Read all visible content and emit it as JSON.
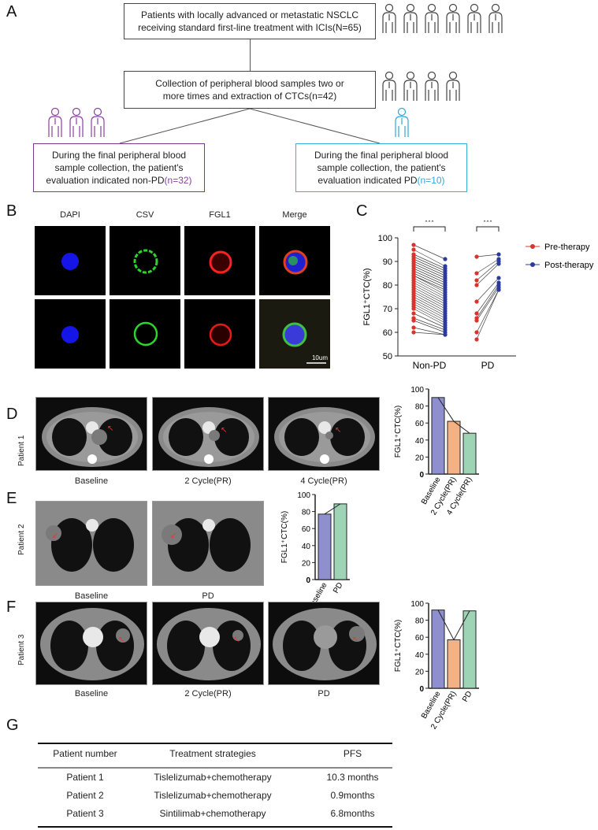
{
  "panels": {
    "A": "A",
    "B": "B",
    "C": "C",
    "D": "D",
    "E": "E",
    "F": "F",
    "G": "G"
  },
  "flow": {
    "box1_line1": "Patients with locally advanced or metastatic NSCLC",
    "box1_line2": "receiving standard first-line treatment with ICIs(N=65)",
    "box2_line1": "Collection of peripheral blood samples two or",
    "box2_line2": "more times and extraction of CTCs(n=42)",
    "box3_line1": "During the final peripheral blood",
    "box3_line2": "sample collection, the patient's",
    "box3_line3": "evaluation indicated non-PD",
    "box3_n": "(n=32)",
    "box4_line1": "During the final peripheral blood",
    "box4_line2": "sample collection, the patient's",
    "box4_line3": "evaluation indicated PD",
    "box4_n": "(n=10)"
  },
  "microscopy": {
    "headers": [
      "DAPI",
      "CSV",
      "FGL1",
      "Merge"
    ],
    "scale_bar": "10um"
  },
  "ct_labels": {
    "patient1": "Patient 1",
    "patient2": "Patient 2",
    "patient3": "Patient 3",
    "d_caps": [
      "Baseline",
      "2 Cycle(PR)",
      "4 Cycle(PR)"
    ],
    "e_caps": [
      "Baseline",
      "PD"
    ],
    "f_caps": [
      "Baseline",
      "2 Cycle(PR)",
      "PD"
    ]
  },
  "chart_data": [
    {
      "type": "scatter",
      "panel": "C",
      "ylabel": "FGL1⁺CTC(%)",
      "ylim": [
        50,
        100
      ],
      "yticks": [
        50,
        60,
        70,
        80,
        90,
        100
      ],
      "categories": [
        "Non-PD",
        "PD"
      ],
      "significance": [
        "***",
        "***"
      ],
      "legend": [
        "Pre-therapy",
        "Post-therapy"
      ],
      "colors": {
        "pre": "#d9342b",
        "post": "#2b3a9c"
      },
      "series": [
        {
          "group": "Non-PD",
          "pre": [
            97,
            95,
            93,
            92,
            91,
            90,
            89,
            88,
            87,
            86,
            85,
            84,
            84,
            83,
            82,
            81,
            80,
            79,
            78,
            77,
            76,
            75,
            74,
            73,
            72,
            71,
            70,
            68,
            66,
            65,
            62,
            60
          ],
          "post": [
            91,
            88,
            87,
            86,
            85,
            84,
            83,
            82,
            81,
            80,
            79,
            78,
            77,
            76,
            75,
            74,
            73,
            72,
            71,
            70,
            69,
            68,
            67,
            66,
            65,
            64,
            63,
            62,
            61,
            60,
            59,
            59
          ]
        },
        {
          "group": "PD",
          "pre": [
            92,
            85,
            82,
            80,
            73,
            68,
            66,
            65,
            60,
            57
          ],
          "post": [
            93,
            91,
            90,
            89,
            83,
            81,
            80,
            79,
            78,
            78
          ]
        }
      ]
    },
    {
      "type": "bar",
      "panel": "D",
      "ylabel": "FGL1⁺CTC(%)",
      "ylim": [
        0,
        100
      ],
      "yticks": [
        0,
        20,
        40,
        60,
        80,
        100
      ],
      "categories": [
        "Baseline",
        "2 Cycle(PR)",
        "4 Cycle(PR)"
      ],
      "values": [
        90,
        62,
        48
      ],
      "colors": [
        "#8f8fcf",
        "#f4b183",
        "#9ed3b6"
      ]
    },
    {
      "type": "bar",
      "panel": "E",
      "ylabel": "FGL1⁺CTC(%)",
      "ylim": [
        0,
        100
      ],
      "yticks": [
        0,
        20,
        40,
        60,
        80,
        100
      ],
      "categories": [
        "Baseline",
        "PD"
      ],
      "values": [
        77,
        89
      ],
      "colors": [
        "#8f8fcf",
        "#9ed3b6"
      ]
    },
    {
      "type": "bar",
      "panel": "F",
      "ylabel": "FGL1⁺CTC(%)",
      "ylim": [
        0,
        100
      ],
      "yticks": [
        0,
        20,
        40,
        60,
        80,
        100
      ],
      "categories": [
        "Baseline",
        "2 Cycle(PR)",
        "PD"
      ],
      "values": [
        92,
        57,
        91
      ],
      "colors": [
        "#8f8fcf",
        "#f4b183",
        "#9ed3b6"
      ]
    }
  ],
  "table": {
    "headers": [
      "Patient number",
      "Treatment strategies",
      "PFS"
    ],
    "rows": [
      [
        "Patient 1",
        "Tislelizumab+chemotherapy",
        "10.3 months"
      ],
      [
        "Patient 2",
        "Tislelizumab+chemotherapy",
        "0.9months"
      ],
      [
        "Patient 3",
        "Sintilimab+chemotherapy",
        "6.8months"
      ]
    ]
  }
}
